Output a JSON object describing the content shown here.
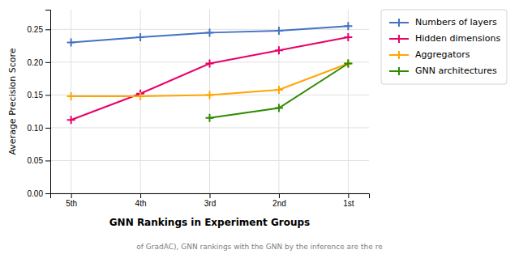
{
  "chart_data": {
    "type": "line",
    "categories": [
      "5th",
      "4th",
      "3rd",
      "2nd",
      "1st"
    ],
    "series": [
      {
        "name": "Numbers of layers",
        "color": "#4472C4",
        "values": [
          0.23,
          0.238,
          0.245,
          0.248,
          0.255
        ]
      },
      {
        "name": "Hidden dimensions",
        "color": "#E8006A",
        "values": [
          0.112,
          0.152,
          0.198,
          0.218,
          0.238
        ]
      },
      {
        "name": "Aggregators",
        "color": "#FFA500",
        "values": [
          0.148,
          0.148,
          0.15,
          0.158,
          0.198
        ]
      },
      {
        "name": "GNN architectures",
        "color": "#2E8B00",
        "values": [
          null,
          null,
          0.115,
          0.13,
          0.198
        ]
      }
    ],
    "ylabel": "Average Precision Score",
    "xlabel": "GNN Rankings in Experiment Groups",
    "annotation": "of GradAC), GNN rankings with the GNN by the inference are the re",
    "ylim": [
      0.0,
      0.28
    ],
    "yticks": [
      {
        "value": 0,
        "label": "0.00"
      },
      0.05,
      {
        "value": 0.1,
        "label": "0.10"
      },
      0.15,
      {
        "value": 0.2,
        "label": "0.20"
      },
      0.25
    ],
    "marker": "plus",
    "grid": true,
    "legend": "right"
  }
}
